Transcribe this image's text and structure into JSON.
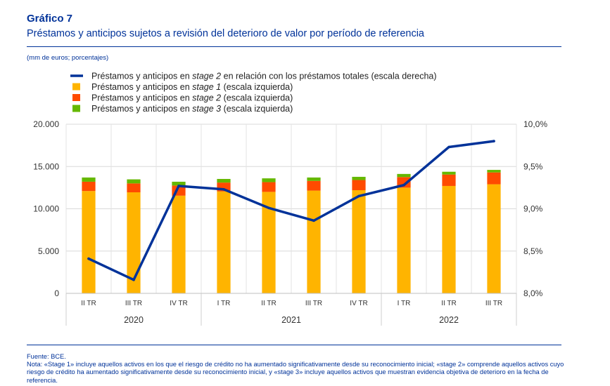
{
  "header": {
    "title": "Gráfico 7",
    "subtitle": "Préstamos y anticipos sujetos a revisión del deterioro de valor por período de referencia",
    "units": "(mm de euros; porcentajes)"
  },
  "chart_data": {
    "type": "bar",
    "stacked": true,
    "categories": [
      "II TR",
      "III TR",
      "IV TR",
      "I TR",
      "II TR",
      "III TR",
      "IV TR",
      "I TR",
      "II TR",
      "III TR"
    ],
    "year_groups": [
      {
        "label": "2020",
        "from": 0,
        "to": 2
      },
      {
        "label": "2021",
        "from": 3,
        "to": 6
      },
      {
        "label": "2022",
        "from": 7,
        "to": 9
      }
    ],
    "series": [
      {
        "name_parts": [
          "Préstamos y anticipos en ",
          "stage 1",
          " (escala izquierda)"
        ],
        "kind": "bar",
        "axis": "left",
        "color": "#ffb400",
        "values": [
          12100,
          11950,
          11550,
          12050,
          12000,
          12150,
          12200,
          12500,
          12700,
          12900
        ]
      },
      {
        "name_parts": [
          "Préstamos y anticipos en ",
          "stage 2",
          " (escala izquierda)"
        ],
        "kind": "bar",
        "axis": "left",
        "color": "#ff4b00",
        "values": [
          1100,
          1050,
          1200,
          1050,
          1150,
          1150,
          1200,
          1250,
          1350,
          1400
        ]
      },
      {
        "name_parts": [
          "Préstamos y anticipos en ",
          "stage 3",
          " (escala izquierda)"
        ],
        "kind": "bar",
        "axis": "left",
        "color": "#65b800",
        "values": [
          500,
          480,
          450,
          430,
          450,
          400,
          380,
          370,
          330,
          300
        ]
      },
      {
        "name_parts": [
          "Préstamos y anticipos en ",
          "stage 2",
          " en relación con los préstamos totales (escala derecha)"
        ],
        "kind": "line",
        "axis": "right",
        "color": "#003299",
        "values": [
          8.41,
          8.16,
          9.27,
          9.23,
          9.01,
          8.86,
          9.15,
          9.28,
          9.73,
          9.8
        ]
      }
    ],
    "y_left": {
      "min": 0,
      "max": 20000,
      "ticks": [
        "0",
        "5.000",
        "10.000",
        "15.000",
        "20.000"
      ],
      "tick_values": [
        0,
        5000,
        10000,
        15000,
        20000
      ]
    },
    "y_right": {
      "min": 8.0,
      "max": 10.0,
      "ticks": [
        "8,0%",
        "8,5%",
        "9,0%",
        "9,5%",
        "10,0%"
      ],
      "tick_values": [
        8.0,
        8.5,
        9.0,
        9.5,
        10.0
      ]
    },
    "grid": true,
    "legend_position": "top-left"
  },
  "footer": {
    "source": "Fuente: BCE.",
    "note": "Nota: «Stage 1» incluye aquellos activos en los que el riesgo de crédito no ha aumentado significativamente desde su reconocimiento inicial; «stage 2» comprende aquellos activos cuyo riesgo de crédito ha aumentado significativamente desde su reconocimiento inicial, y «stage 3» incluye aquellos activos que muestran evidencia objetiva de deterioro en la fecha de referencia."
  }
}
